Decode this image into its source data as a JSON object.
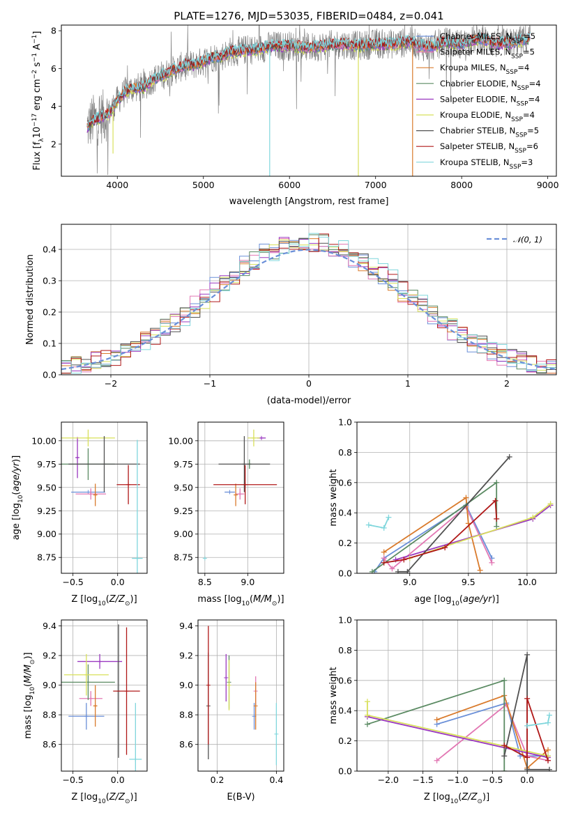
{
  "colors": {
    "chabrier_miles": "#6a8fd8",
    "salpeter_miles": "#e277b3",
    "kroupa_miles": "#d97a2b",
    "chabrier_elodie": "#5a8a62",
    "salpeter_elodie": "#9a38c0",
    "kroupa_elodie": "#d8e05a",
    "chabrier_stelib": "#505050",
    "salpeter_stelib": "#b01818",
    "kroupa_stelib": "#7fd6dc",
    "gauss": "#6a8fd8",
    "observed": "#808080"
  },
  "chart_data": [
    {
      "id": "spectrum",
      "type": "line",
      "title": "PLATE=1276, MJD=53035, FIBERID=0484, z=0.041",
      "xlabel": "wavelength [Angstrom, rest frame]",
      "ylabel": "Flux [f_λ10^-17 erg cm^-2 s^-1 A^-1]",
      "xlim": [
        3350,
        9100
      ],
      "ylim": [
        0.3,
        8.3
      ],
      "xticks": [
        4000,
        5000,
        6000,
        7000,
        8000,
        9000
      ],
      "yticks": [
        2,
        4,
        6,
        8
      ],
      "legend_position": "top-right",
      "legend": [
        {
          "base": "Chabrier MILES, N",
          "sub": "SSP",
          "tail": "=5",
          "color": "chabrier_miles"
        },
        {
          "base": "Salpeter MILES, N",
          "sub": "SSP",
          "tail": "=5",
          "color": "salpeter_miles"
        },
        {
          "base": "Kroupa MILES, N",
          "sub": "SSP",
          "tail": "=4",
          "color": "kroupa_miles"
        },
        {
          "base": "Chabrier ELODIE, N",
          "sub": "SSP",
          "tail": "=4",
          "color": "chabrier_elodie"
        },
        {
          "base": "Salpeter ELODIE, N",
          "sub": "SSP",
          "tail": "=4",
          "color": "salpeter_elodie"
        },
        {
          "base": "Kroupa ELODIE, N",
          "sub": "SSP",
          "tail": "=4",
          "color": "kroupa_elodie"
        },
        {
          "base": "Chabrier STELIB, N",
          "sub": "SSP",
          "tail": "=5",
          "color": "chabrier_stelib"
        },
        {
          "base": "Salpeter STELIB, N",
          "sub": "SSP",
          "tail": "=6",
          "color": "salpeter_stelib"
        },
        {
          "base": "Kroupa STELIB, N",
          "sub": "SSP",
          "tail": "=3",
          "color": "kroupa_stelib"
        }
      ],
      "continuum": [
        [
          3650,
          2.9
        ],
        [
          3700,
          3.2
        ],
        [
          3800,
          3.4
        ],
        [
          3900,
          3.6
        ],
        [
          4000,
          4.3
        ],
        [
          4100,
          4.8
        ],
        [
          4200,
          5.0
        ],
        [
          4300,
          5.0
        ],
        [
          4400,
          5.4
        ],
        [
          4500,
          5.6
        ],
        [
          4600,
          5.8
        ],
        [
          4700,
          6.0
        ],
        [
          4800,
          6.2
        ],
        [
          4900,
          6.2
        ],
        [
          5000,
          6.4
        ],
        [
          5100,
          6.6
        ],
        [
          5200,
          6.6
        ],
        [
          5300,
          6.9
        ],
        [
          5400,
          6.9
        ],
        [
          5500,
          7.0
        ],
        [
          5600,
          7.0
        ],
        [
          5800,
          7.2
        ],
        [
          6000,
          7.2
        ],
        [
          6200,
          7.1
        ],
        [
          6400,
          7.2
        ],
        [
          6600,
          7.3
        ],
        [
          6800,
          7.2
        ],
        [
          7000,
          7.3
        ],
        [
          7200,
          7.3
        ],
        [
          7400,
          7.4
        ],
        [
          7600,
          7.1
        ],
        [
          7800,
          7.4
        ],
        [
          8000,
          7.3
        ],
        [
          8200,
          7.6
        ],
        [
          8400,
          7.3
        ],
        [
          8600,
          7.4
        ],
        [
          8800,
          7.6
        ]
      ],
      "drops": [
        {
          "x": 3950,
          "to": 1.5,
          "color": "kroupa_elodie"
        },
        {
          "x": 5770,
          "to": 0.3,
          "color": "kroupa_stelib"
        },
        {
          "x": 6800,
          "to": 0.3,
          "color": "kroupa_elodie"
        },
        {
          "x": 7430,
          "to": 0.3,
          "color": "kroupa_miles"
        }
      ]
    },
    {
      "id": "residuals",
      "type": "bar",
      "xlabel": "(data-model)/error",
      "ylabel": "Normed distribution",
      "xlim": [
        -2.5,
        2.5
      ],
      "ylim": [
        0,
        0.48
      ],
      "xticks": [
        -2,
        -1,
        0,
        1,
        2
      ],
      "yticks": [
        0.0,
        0.1,
        0.2,
        0.3,
        0.4
      ],
      "legend_position": "top-right",
      "gauss_label": "𝒩(0, 1)",
      "bin_width": 0.1
    },
    {
      "id": "age_vs_Z",
      "type": "scatter",
      "xlabel": "Z [log10(Z/Z⊙)]",
      "ylabel": "age  [log10(age/yr)]",
      "xlim": [
        -0.63,
        0.33
      ],
      "ylim": [
        8.58,
        10.2
      ],
      "xticks": [
        -0.5,
        0.0
      ],
      "yticks": [
        8.75,
        9.0,
        9.25,
        9.5,
        9.75,
        10.0
      ],
      "points": [
        {
          "x": -0.33,
          "y": 9.45,
          "xerr": 0.19,
          "yerr": 0.0,
          "color": "chabrier_miles"
        },
        {
          "x": -0.3,
          "y": 9.43,
          "xerr": 0.17,
          "yerr": 0.06,
          "color": "salpeter_miles"
        },
        {
          "x": -0.25,
          "y": 9.42,
          "xerr": 0.02,
          "yerr": 0.12,
          "color": "kroupa_miles"
        },
        {
          "x": -0.33,
          "y": 9.75,
          "xerr": 0.3,
          "yerr": 0.17,
          "color": "chabrier_elodie"
        },
        {
          "x": -0.45,
          "y": 9.82,
          "xerr": 0.02,
          "yerr": 0.22,
          "color": "salpeter_elodie"
        },
        {
          "x": -0.33,
          "y": 10.03,
          "xerr": 0.3,
          "yerr": 0.09,
          "color": "kroupa_elodie"
        },
        {
          "x": -0.15,
          "y": 9.75,
          "xerr": 0.4,
          "yerr": 0.3,
          "color": "chabrier_stelib"
        },
        {
          "x": 0.12,
          "y": 9.53,
          "xerr": 0.13,
          "yerr": 0.21,
          "color": "salpeter_stelib"
        },
        {
          "x": 0.22,
          "y": 8.74,
          "xerr": 0.06,
          "yerr": 1.27,
          "color": "kroupa_stelib"
        }
      ]
    },
    {
      "id": "age_vs_mass",
      "type": "scatter",
      "xlabel": "mass [log10(M/M⊙)]",
      "ylabel": "",
      "xlim": [
        8.42,
        9.42
      ],
      "ylim": [
        8.58,
        10.2
      ],
      "xticks": [
        8.5,
        9.0
      ],
      "yticks": [
        8.75,
        9.0,
        9.25,
        9.5,
        9.75,
        10.0
      ],
      "points": [
        {
          "x": 8.79,
          "y": 9.45,
          "xerr": 0.06,
          "yerr": 0.0,
          "color": "chabrier_miles"
        },
        {
          "x": 8.91,
          "y": 9.43,
          "xerr": 0.05,
          "yerr": 0.06,
          "color": "salpeter_miles"
        },
        {
          "x": 8.86,
          "y": 9.42,
          "xerr": 0.02,
          "yerr": 0.12,
          "color": "kroupa_miles"
        },
        {
          "x": 9.02,
          "y": 9.75,
          "xerr": 0.02,
          "yerr": 0.05,
          "color": "chabrier_elodie"
        },
        {
          "x": 9.16,
          "y": 10.03,
          "xerr": 0.05,
          "yerr": 0.0,
          "color": "salpeter_elodie"
        },
        {
          "x": 9.07,
          "y": 10.03,
          "xerr": 0.07,
          "yerr": 0.09,
          "color": "kroupa_elodie"
        },
        {
          "x": 8.96,
          "y": 9.75,
          "xerr": 0.3,
          "yerr": 0.3,
          "color": "chabrier_stelib"
        },
        {
          "x": 8.97,
          "y": 9.53,
          "xerr": 0.37,
          "yerr": 0.21,
          "color": "salpeter_stelib"
        },
        {
          "x": 8.5,
          "y": 8.74,
          "xerr": 0.0,
          "yerr": 0.0,
          "color": "kroupa_stelib"
        }
      ]
    },
    {
      "id": "weight_vs_age",
      "type": "line",
      "xlabel": "age  [log10(age/yr)]",
      "ylabel": "mass weight",
      "xlim": [
        8.55,
        10.25
      ],
      "ylim": [
        0.0,
        1.0
      ],
      "xticks": [
        9.0,
        9.5,
        10.0
      ],
      "yticks": [
        0.0,
        0.2,
        0.4,
        0.6,
        0.8,
        1.0
      ],
      "series": [
        {
          "color": "chabrier_miles",
          "points": [
            [
              8.7,
              0.01
            ],
            [
              8.78,
              0.1
            ],
            [
              9.48,
              0.45
            ],
            [
              9.7,
              0.1
            ]
          ]
        },
        {
          "color": "salpeter_miles",
          "points": [
            [
              8.78,
              0.1
            ],
            [
              8.85,
              0.03
            ],
            [
              9.48,
              0.44
            ],
            [
              9.7,
              0.07
            ]
          ]
        },
        {
          "color": "kroupa_miles",
          "points": [
            [
              8.78,
              0.14
            ],
            [
              9.48,
              0.5
            ],
            [
              9.5,
              0.33
            ],
            [
              9.6,
              0.02
            ]
          ]
        },
        {
          "color": "chabrier_elodie",
          "points": [
            [
              8.68,
              0.01
            ],
            [
              9.74,
              0.6
            ],
            [
              9.74,
              0.31
            ]
          ]
        },
        {
          "color": "salpeter_elodie",
          "points": [
            [
              8.88,
              0.09
            ],
            [
              10.05,
              0.36
            ],
            [
              10.2,
              0.45
            ]
          ]
        },
        {
          "color": "kroupa_elodie",
          "points": [
            [
              9.0,
              0.1
            ],
            [
              10.05,
              0.37
            ],
            [
              10.2,
              0.46
            ]
          ]
        },
        {
          "color": "chabrier_stelib",
          "points": [
            [
              8.9,
              0.01
            ],
            [
              8.98,
              0.01
            ],
            [
              9.85,
              0.77
            ]
          ]
        },
        {
          "color": "salpeter_stelib",
          "points": [
            [
              8.78,
              0.07
            ],
            [
              8.95,
              0.09
            ],
            [
              9.3,
              0.17
            ],
            [
              9.73,
              0.48
            ],
            [
              9.74,
              0.36
            ]
          ]
        },
        {
          "color": "kroupa_stelib",
          "points": [
            [
              8.65,
              0.32
            ],
            [
              8.78,
              0.3
            ],
            [
              8.82,
              0.37
            ]
          ]
        }
      ]
    },
    {
      "id": "mass_vs_Z",
      "type": "scatter",
      "xlabel": "Z [log10(Z/Z⊙)]",
      "ylabel": "mass [log10(M/M⊙)]",
      "xlim": [
        -0.63,
        0.33
      ],
      "ylim": [
        8.42,
        9.44
      ],
      "xticks": [
        -0.5,
        0.0
      ],
      "yticks": [
        8.6,
        8.8,
        9.0,
        9.2,
        9.4
      ],
      "points": [
        {
          "x": -0.35,
          "y": 8.79,
          "xerr": 0.2,
          "yerr": 0.09,
          "color": "chabrier_miles"
        },
        {
          "x": -0.3,
          "y": 8.91,
          "xerr": 0.13,
          "yerr": 0.05,
          "color": "salpeter_miles"
        },
        {
          "x": -0.25,
          "y": 8.86,
          "xerr": 0.02,
          "yerr": 0.14,
          "color": "kroupa_miles"
        },
        {
          "x": -0.33,
          "y": 9.02,
          "xerr": 0.3,
          "yerr": 0.12,
          "color": "chabrier_elodie"
        },
        {
          "x": -0.2,
          "y": 9.16,
          "xerr": 0.25,
          "yerr": 0.05,
          "color": "salpeter_elodie"
        },
        {
          "x": -0.35,
          "y": 9.07,
          "xerr": 0.25,
          "yerr": 0.14,
          "color": "kroupa_elodie"
        },
        {
          "x": 0.01,
          "y": 8.96,
          "xerr": 0.0,
          "yerr": 0.45,
          "color": "chabrier_stelib"
        },
        {
          "x": 0.1,
          "y": 8.96,
          "xerr": 0.15,
          "yerr": 0.43,
          "color": "salpeter_stelib"
        },
        {
          "x": 0.2,
          "y": 8.5,
          "xerr": 0.07,
          "yerr": 0.38,
          "color": "kroupa_stelib"
        }
      ]
    },
    {
      "id": "mass_vs_ebv",
      "type": "scatter",
      "xlabel": "E(B-V)",
      "ylabel": "",
      "xlim": [
        0.135,
        0.425
      ],
      "ylim": [
        8.42,
        9.44
      ],
      "xticks": [
        0.2,
        0.4
      ],
      "yticks": [
        8.6,
        8.8,
        9.0,
        9.2,
        9.4
      ],
      "points": [
        {
          "x": 0.325,
          "y": 8.79,
          "xerr": 0.0,
          "yerr": 0.09,
          "color": "chabrier_miles"
        },
        {
          "x": 0.33,
          "y": 8.96,
          "xerr": 0.0,
          "yerr": 0.1,
          "color": "salpeter_miles"
        },
        {
          "x": 0.33,
          "y": 8.86,
          "xerr": 0.0,
          "yerr": 0.16,
          "color": "kroupa_miles"
        },
        {
          "x": 0.24,
          "y": 9.02,
          "xerr": 0.0,
          "yerr": 0.18,
          "color": "chabrier_elodie"
        },
        {
          "x": 0.23,
          "y": 9.05,
          "xerr": 0.0,
          "yerr": 0.16,
          "color": "salpeter_elodie"
        },
        {
          "x": 0.24,
          "y": 9.0,
          "xerr": 0.0,
          "yerr": 0.17,
          "color": "kroupa_elodie"
        },
        {
          "x": 0.17,
          "y": 8.86,
          "xerr": 0.0,
          "yerr": 0.36,
          "color": "chabrier_stelib"
        },
        {
          "x": 0.17,
          "y": 9.0,
          "xerr": 0.0,
          "yerr": 0.4,
          "color": "salpeter_stelib"
        },
        {
          "x": 0.4,
          "y": 8.67,
          "xerr": 0.0,
          "yerr": 0.21,
          "color": "kroupa_stelib"
        }
      ]
    },
    {
      "id": "weight_vs_Z",
      "type": "line",
      "xlabel": "Z [log10(Z/Z⊙)]",
      "ylabel": "mass weight",
      "xlim": [
        -2.45,
        0.42
      ],
      "ylim": [
        0.0,
        1.0
      ],
      "xticks": [
        -2.0,
        -1.5,
        -1.0,
        -0.5,
        0.0
      ],
      "yticks": [
        0.0,
        0.2,
        0.4,
        0.6,
        0.8,
        1.0
      ],
      "series": [
        {
          "color": "chabrier_miles",
          "points": [
            [
              -1.3,
              0.31
            ],
            [
              -0.3,
              0.45
            ],
            [
              -0.1,
              0.1
            ],
            [
              0.3,
              0.1
            ]
          ]
        },
        {
          "color": "salpeter_miles",
          "points": [
            [
              -1.3,
              0.07
            ],
            [
              -0.3,
              0.44
            ],
            [
              0.0,
              0.1
            ],
            [
              0.3,
              0.07
            ]
          ]
        },
        {
          "color": "kroupa_miles",
          "points": [
            [
              -1.3,
              0.34
            ],
            [
              -0.33,
              0.5
            ],
            [
              0.0,
              0.02
            ],
            [
              0.3,
              0.14
            ]
          ]
        },
        {
          "color": "chabrier_elodie",
          "points": [
            [
              -2.3,
              0.31
            ],
            [
              -0.33,
              0.6
            ],
            [
              -0.33,
              0.0
            ]
          ]
        },
        {
          "color": "salpeter_elodie",
          "points": [
            [
              -2.3,
              0.36
            ],
            [
              0.3,
              0.09
            ]
          ]
        },
        {
          "color": "kroupa_elodie",
          "points": [
            [
              -2.3,
              0.46
            ],
            [
              -2.3,
              0.37
            ],
            [
              0.3,
              0.1
            ]
          ]
        },
        {
          "color": "chabrier_stelib",
          "points": [
            [
              -0.33,
              0.1
            ],
            [
              0.0,
              0.77
            ],
            [
              0.0,
              0.01
            ],
            [
              0.32,
              0.01
            ]
          ]
        },
        {
          "color": "salpeter_stelib",
          "points": [
            [
              -0.33,
              0.17
            ],
            [
              0.0,
              0.09
            ],
            [
              0.0,
              0.48
            ],
            [
              0.3,
              0.07
            ]
          ]
        },
        {
          "color": "kroupa_stelib",
          "points": [
            [
              0.0,
              0.3
            ],
            [
              0.3,
              0.32
            ],
            [
              0.32,
              0.37
            ]
          ]
        }
      ]
    }
  ]
}
